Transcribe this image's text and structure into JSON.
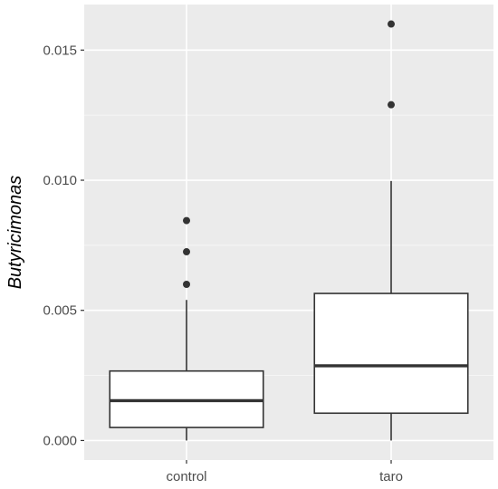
{
  "chart_data": {
    "type": "boxplot",
    "ylabel": "Butyricimonas",
    "xlabel": "",
    "categories": [
      "control",
      "taro"
    ],
    "ylim": [
      -0.00075,
      0.01675
    ],
    "y_ticks": [
      0.0,
      0.005,
      0.01,
      0.015
    ],
    "y_tick_labels": [
      "0.000",
      "0.005",
      "0.010",
      "0.015"
    ],
    "grid": true,
    "boxes": [
      {
        "category": "control",
        "whisker_low": 0.0,
        "q1": 0.0005,
        "median": 0.00153,
        "q3": 0.00267,
        "whisker_high": 0.0054,
        "outliers": [
          0.006,
          0.00725,
          0.00845
        ]
      },
      {
        "category": "taro",
        "whisker_low": 0.0,
        "q1": 0.00105,
        "median": 0.00287,
        "q3": 0.00565,
        "whisker_high": 0.00997,
        "outliers": [
          0.0129,
          0.016
        ]
      }
    ],
    "colors": {
      "panel_background": "#ebebeb",
      "grid_major": "#ffffff",
      "grid_minor": "#f7f7f7",
      "box_fill": "#ffffff",
      "box_line": "#333333",
      "outlier": "#333333",
      "tick_label": "#4d4d4d"
    }
  }
}
